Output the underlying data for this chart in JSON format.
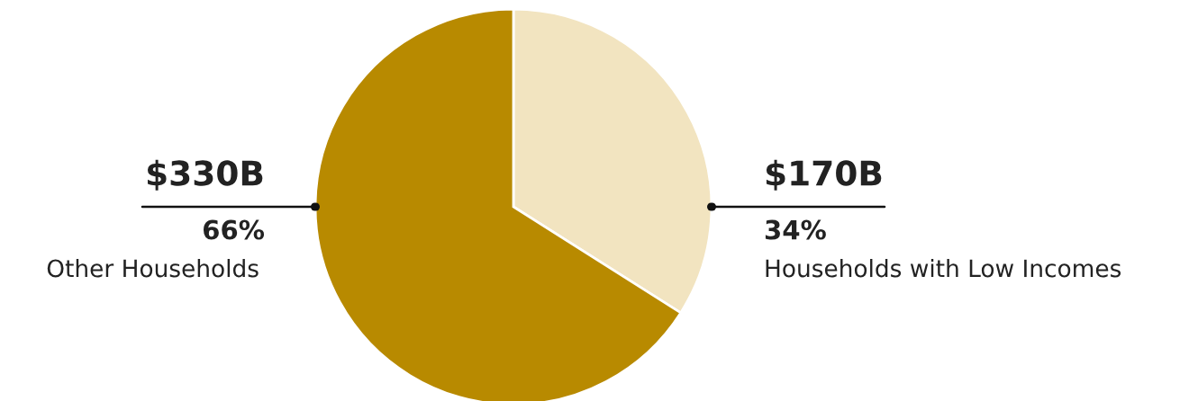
{
  "chart_data": {
    "type": "pie",
    "categories": [
      "Households with Low Incomes",
      "Other Households"
    ],
    "values": [
      170,
      330
    ],
    "colors": [
      "#f2e4c0",
      "#b88a00"
    ],
    "value_labels": [
      "$170B",
      "$330B"
    ],
    "annotations": [
      {
        "text": "34%",
        "x": "Households with Low Incomes"
      },
      {
        "text": "66%",
        "x": "Other Households"
      }
    ]
  }
}
